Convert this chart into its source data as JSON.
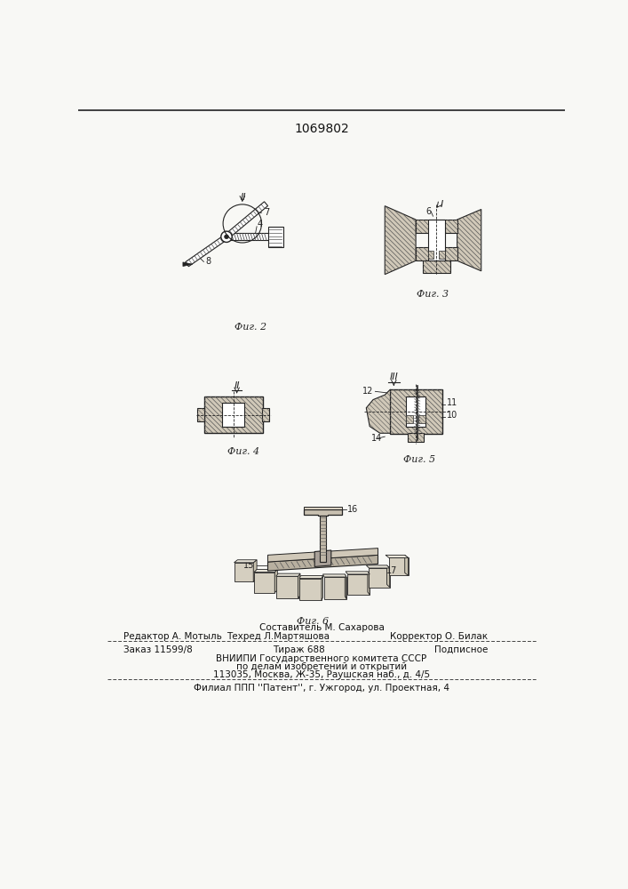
{
  "patent_number": "1069802",
  "bg_color": "#f8f8f5",
  "title_fontsize": 10,
  "body_fontsize": 7.5,
  "small_fontsize": 7,
  "fig2_caption": "Фиг. 2",
  "fig3_caption": "Фиг. 3",
  "fig4_caption": "Фиг. 4",
  "fig5_caption": "Фиг. 5",
  "fig6_caption": "Фиг. 6",
  "footer_above": "Составитель М. Сахарова",
  "footer_line1_left": "Редактор А. Мотыль",
  "footer_line1_center": "Техред Л.Мартяшова",
  "footer_line1_right": "Корректор О. Билак",
  "footer_line2_left": "Заказ 11599/8",
  "footer_line2_center": "Тираж 688",
  "footer_line2_right": "Подписное",
  "footer_line3": "ВНИИПИ Государственного комитета СССР",
  "footer_line4": "по делам изобретений и открытий",
  "footer_line5": "113035, Москва, Ж-35, Раушская наб., д. 4/5",
  "footer_line6": "Филиал ППП ''Патент'', г. Ужгород, ул. Проектная, 4",
  "hatch_color": "#555555",
  "line_color": "#222222",
  "fill_color": "#d0c8b8"
}
